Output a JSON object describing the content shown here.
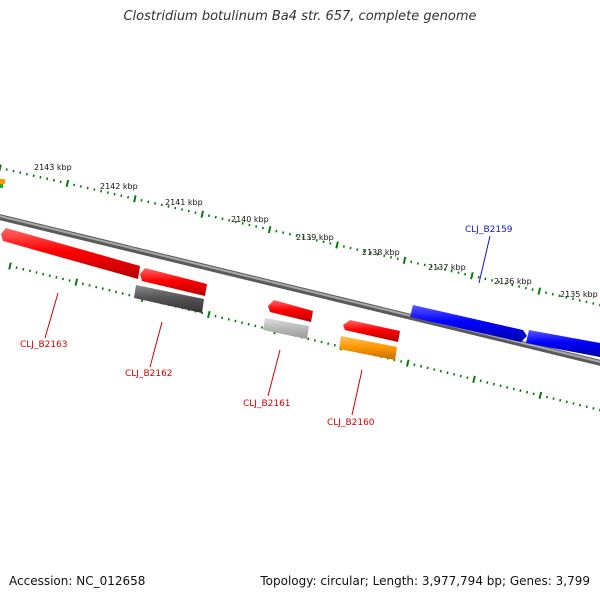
{
  "title": "Clostridium botulinum Ba4 str. 657, complete genome",
  "footer": {
    "accession": "Accession: NC_012658",
    "summary": "Topology: circular; Length: 3,977,794 bp; Genes: 3,799"
  },
  "scale_labels": [
    "2143 kbp",
    "2142 kbp",
    "2141 kbp",
    "2140 kbp",
    "2139 kbp",
    "2138 kbp",
    "2137 kbp",
    "2136 kbp",
    "2135 kbp"
  ],
  "gene_labels": [
    {
      "text": "CLJ_B2163",
      "color": "#d40000"
    },
    {
      "text": "CLJ_B2162",
      "color": "#d40000"
    },
    {
      "text": "CLJ_B2161",
      "color": "#d40000"
    },
    {
      "text": "CLJ_B2160",
      "color": "#d40000"
    },
    {
      "text": "CLJ_B2159",
      "color": "#1515c8"
    }
  ],
  "colors": {
    "cds_red": "#ff0000",
    "cds_blue": "#0000ff",
    "cds_dark_gray": "#555555",
    "cds_light_gray": "#bbbbbb",
    "cds_orange": "#ff9900",
    "backbone": "#888888",
    "ticks": "#0a7a0a"
  }
}
